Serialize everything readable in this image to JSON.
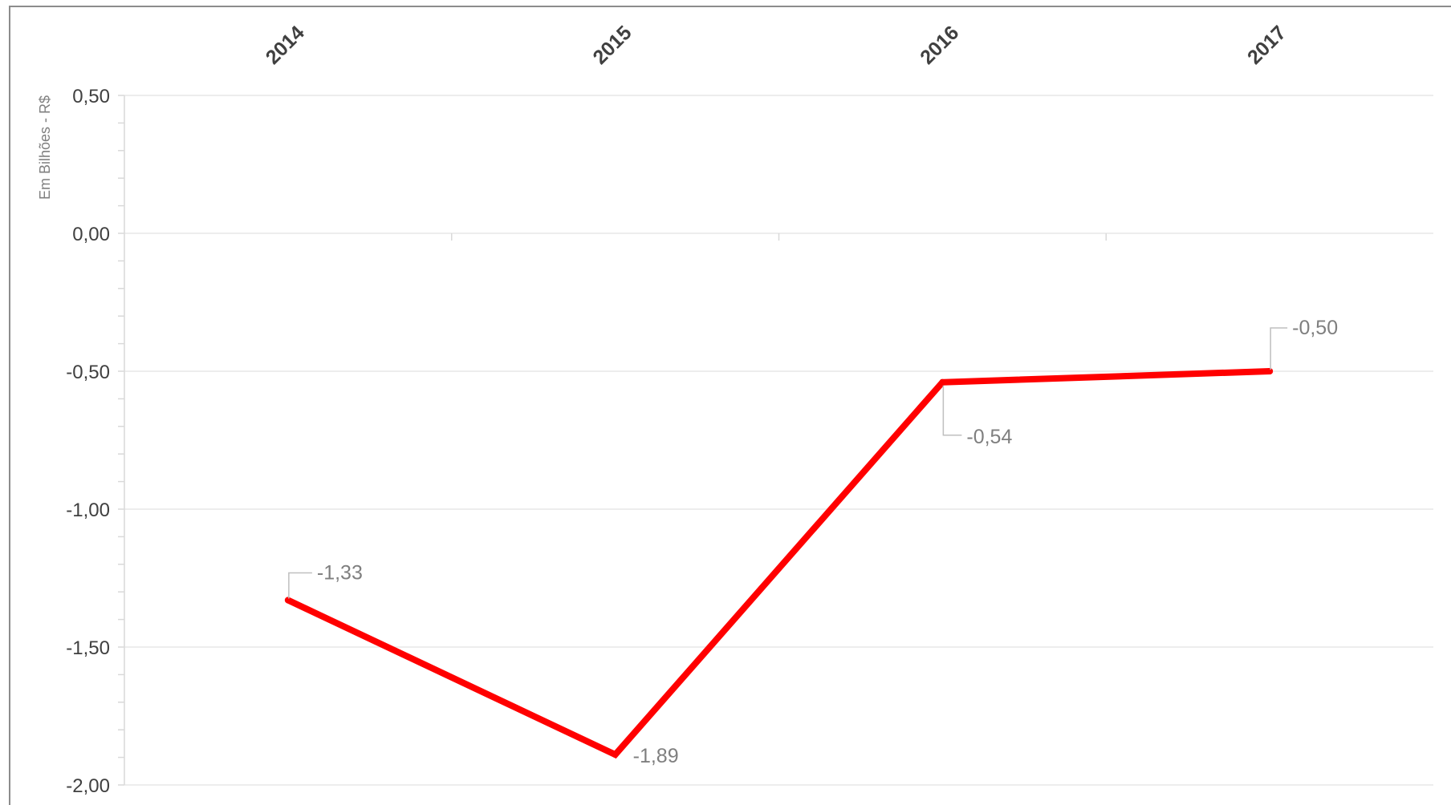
{
  "chart_data": {
    "type": "line",
    "categories": [
      "2014",
      "2015",
      "2016",
      "2017"
    ],
    "series": [
      {
        "values": [
          -1.33,
          -1.89,
          -0.54,
          -0.5
        ],
        "labels": [
          "-1,33",
          "-1,89",
          "-0,54",
          "-0,50"
        ],
        "color": "#ff0000"
      }
    ],
    "ylabel": "Em Bilhões - R$",
    "ylim": [
      -2.0,
      0.5
    ],
    "yticks": [
      0.5,
      0.0,
      -0.5,
      -1.0,
      -1.5,
      -2.0
    ],
    "ytick_labels": [
      "0,50",
      "0,00",
      "-0,50",
      "-1,00",
      "-1,50",
      "-2,00"
    ],
    "x_axis_position": "top",
    "gridlines": true,
    "legend": "none",
    "colors": {
      "line": "#ff0000",
      "grid": "#e7e7e7",
      "text": "#404040",
      "data_label": "#7f7f7f",
      "border": "#8c8c8c"
    }
  }
}
